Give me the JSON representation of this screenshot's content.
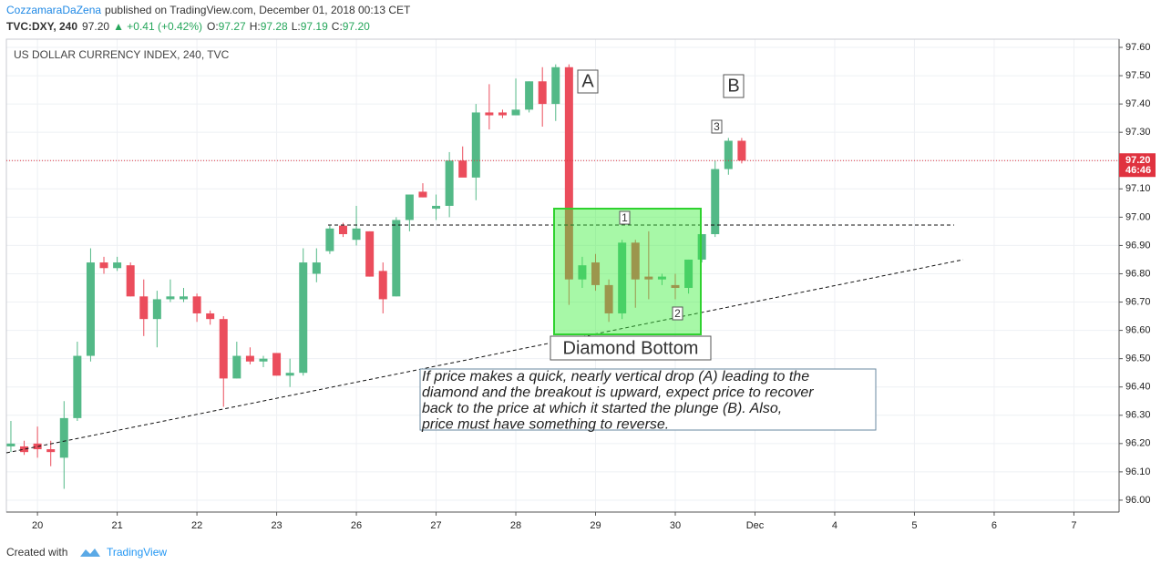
{
  "header": {
    "author": "CozzamaraDaZena",
    "published": "published on TradingView.com, December 01, 2018 00:13 CET",
    "symbol": "TVC:DXY, 240",
    "last": "97.20",
    "change": "▲ +0.41 (+0.42%)",
    "open_label": "O:",
    "open": "97.27",
    "high_label": "H:",
    "high": "97.28",
    "low_label": "L:",
    "low": "97.19",
    "close_label": "C:",
    "close": "97.20"
  },
  "footer": {
    "created": "Created with",
    "brand": "TradingView"
  },
  "chart_data": {
    "type": "candlestick",
    "title": "US DOLLAR CURRENCY INDEX, 240, TVC",
    "up_color": "#53b987",
    "down_color": "#eb4d5c",
    "grid": true,
    "open": [
      96.19,
      96.19,
      96.2,
      96.18,
      96.15,
      96.29,
      96.51,
      96.84,
      96.82,
      96.83,
      96.72,
      96.64,
      96.71,
      96.71,
      96.72,
      96.66,
      96.64,
      96.43,
      96.51,
      96.49,
      96.52,
      96.44,
      96.45,
      96.8,
      96.88,
      96.97,
      96.92,
      96.95,
      96.81,
      96.72,
      96.99,
      97.09,
      97.03,
      97.04,
      97.2,
      97.14,
      97.37,
      97.37,
      97.36,
      97.38,
      97.48,
      97.4,
      97.53,
      96.78,
      96.84,
      96.76,
      96.66,
      96.91,
      96.79,
      96.78,
      96.76,
      96.75,
      96.85,
      96.94,
      97.17,
      97.27
    ],
    "high": [
      96.28,
      96.21,
      96.26,
      96.21,
      96.35,
      96.56,
      96.89,
      96.86,
      96.86,
      96.84,
      96.78,
      96.74,
      96.78,
      96.75,
      96.73,
      96.67,
      96.65,
      96.56,
      96.54,
      96.51,
      96.52,
      96.5,
      96.89,
      96.89,
      96.97,
      96.98,
      97.04,
      96.95,
      96.84,
      97.0,
      97.08,
      97.12,
      97.08,
      97.23,
      97.25,
      97.4,
      97.47,
      97.38,
      97.49,
      97.48,
      97.53,
      97.54,
      97.54,
      96.86,
      96.87,
      96.78,
      96.92,
      96.92,
      96.95,
      96.8,
      96.8,
      96.85,
      96.94,
      97.2,
      97.28,
      97.28
    ],
    "low": [
      96.17,
      96.16,
      96.15,
      96.12,
      96.04,
      96.28,
      96.49,
      96.8,
      96.81,
      96.72,
      96.58,
      96.54,
      96.7,
      96.7,
      96.63,
      96.62,
      96.33,
      96.43,
      96.48,
      96.47,
      96.44,
      96.4,
      96.44,
      96.77,
      96.87,
      96.93,
      96.9,
      96.79,
      96.66,
      96.72,
      96.95,
      97.07,
      96.99,
      97.0,
      97.15,
      97.06,
      97.31,
      97.35,
      97.36,
      97.37,
      97.32,
      97.34,
      96.69,
      96.75,
      96.74,
      96.63,
      96.64,
      96.68,
      96.71,
      96.76,
      96.71,
      96.73,
      96.84,
      96.93,
      97.15,
      97.19
    ],
    "close": [
      96.2,
      96.17,
      96.18,
      96.17,
      96.29,
      96.51,
      96.84,
      96.82,
      96.84,
      96.72,
      96.64,
      96.71,
      96.72,
      96.72,
      96.66,
      96.64,
      96.43,
      96.51,
      96.49,
      96.5,
      96.44,
      96.45,
      96.84,
      96.84,
      96.96,
      96.94,
      96.96,
      96.79,
      96.71,
      96.99,
      97.08,
      97.07,
      97.04,
      97.2,
      97.14,
      97.37,
      97.36,
      97.36,
      97.38,
      97.48,
      97.4,
      97.53,
      96.78,
      96.83,
      96.76,
      96.66,
      96.91,
      96.78,
      96.78,
      96.79,
      96.75,
      96.85,
      96.94,
      97.17,
      97.27,
      97.2
    ],
    "xlim": [
      -0.34,
      83.4
    ],
    "xticks": [
      {
        "value": 2,
        "label": "20"
      },
      {
        "value": 8,
        "label": "21"
      },
      {
        "value": 14,
        "label": "22"
      },
      {
        "value": 20,
        "label": "23"
      },
      {
        "value": 26,
        "label": "26"
      },
      {
        "value": 32,
        "label": "27"
      },
      {
        "value": 38,
        "label": "28"
      },
      {
        "value": 44,
        "label": "29"
      },
      {
        "value": 50,
        "label": "30"
      },
      {
        "value": 56,
        "label": "Dec"
      },
      {
        "value": 62,
        "label": "4"
      },
      {
        "value": 68,
        "label": "5"
      },
      {
        "value": 74,
        "label": "6"
      },
      {
        "value": 80,
        "label": "7"
      }
    ],
    "ylim": [
      95.958,
      97.629
    ],
    "yticks": [
      {
        "value": 96.0,
        "label": "96.00"
      },
      {
        "value": 96.1,
        "label": "96.10"
      },
      {
        "value": 96.2,
        "label": "96.20"
      },
      {
        "value": 96.3,
        "label": "96.30"
      },
      {
        "value": 96.4,
        "label": "96.40"
      },
      {
        "value": 96.5,
        "label": "96.50"
      },
      {
        "value": 96.6,
        "label": "96.60"
      },
      {
        "value": 96.7,
        "label": "96.70"
      },
      {
        "value": 96.8,
        "label": "96.80"
      },
      {
        "value": 96.9,
        "label": "96.90"
      },
      {
        "value": 97.0,
        "label": "97.00"
      },
      {
        "value": 97.1,
        "label": "97.10"
      },
      {
        "value": 97.2,
        "label": "97.20"
      },
      {
        "value": 97.3,
        "label": "97.30"
      },
      {
        "value": 97.4,
        "label": "97.40"
      },
      {
        "value": 97.5,
        "label": "97.50"
      },
      {
        "value": 97.6,
        "label": "97.60"
      }
    ],
    "price_line": {
      "value": 97.2,
      "label": "97.20",
      "countdown": "46:46",
      "color": "#e0323f"
    },
    "annotations": {
      "a": "A",
      "b": "B",
      "one": "1",
      "two": "2",
      "three": "3",
      "pattern": "Diamond Bottom",
      "note": [
        "If price makes a quick, nearly vertical drop (A) leading to the",
        "diamond and the breakout is upward, expect price to recover",
        "back to the price at which it started the plunge (B). Also,",
        "price must have something to reverse."
      ]
    }
  }
}
